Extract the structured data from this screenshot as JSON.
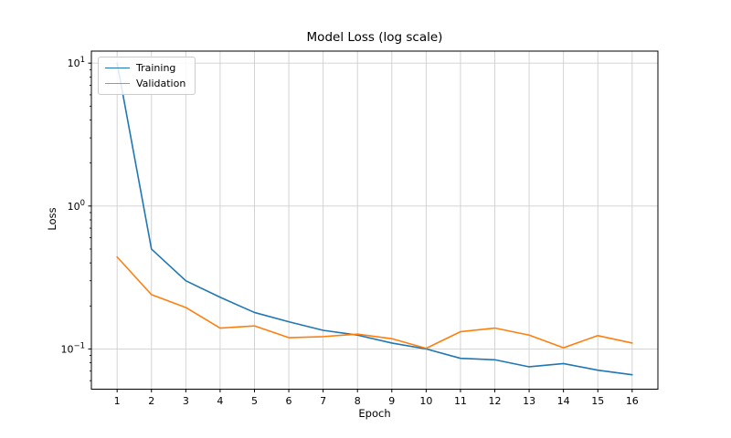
{
  "chart_data": {
    "type": "line",
    "title": "Model Loss (log scale)",
    "xlabel": "Epoch",
    "ylabel": "Loss",
    "yscale": "log",
    "grid": true,
    "legend_position": "upper left",
    "x": [
      1,
      2,
      3,
      4,
      5,
      6,
      7,
      8,
      9,
      10,
      11,
      12,
      13,
      14,
      15,
      16
    ],
    "x_tick_labels": [
      "1",
      "2",
      "3",
      "4",
      "5",
      "6",
      "7",
      "8",
      "9",
      "10",
      "11",
      "12",
      "13",
      "14",
      "15",
      "16"
    ],
    "y_major_ticks": [
      {
        "base": "10",
        "exp": "1",
        "value": 10
      },
      {
        "base": "10",
        "exp": "0",
        "value": 1
      },
      {
        "base": "10",
        "exp": "−1",
        "value": 0.1
      }
    ],
    "xlim": [
      0.25,
      16.75
    ],
    "ylim": [
      0.0523,
      12.14
    ],
    "series": [
      {
        "name": "Training",
        "color": "#1f77b4",
        "values": [
          10.0,
          0.5,
          0.3,
          0.23,
          0.18,
          0.155,
          0.135,
          0.125,
          0.11,
          0.1,
          0.086,
          0.084,
          0.075,
          0.079,
          0.071,
          0.066
        ]
      },
      {
        "name": "Validation",
        "color": "#ff7f0e",
        "values": [
          0.44,
          0.24,
          0.195,
          0.14,
          0.145,
          0.12,
          0.122,
          0.127,
          0.118,
          0.101,
          0.132,
          0.14,
          0.125,
          0.102,
          0.124,
          0.11
        ]
      }
    ],
    "colors": {
      "grid": "#cfcfcf",
      "spine": "#000000",
      "text": "#000000"
    }
  }
}
